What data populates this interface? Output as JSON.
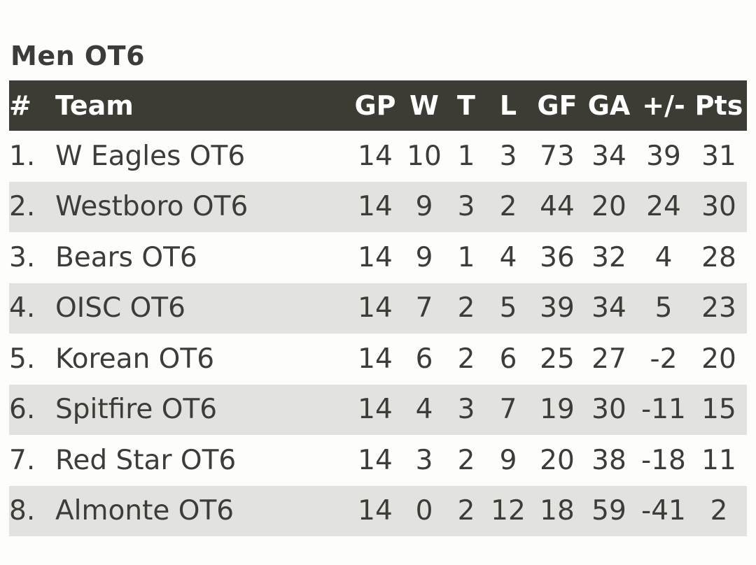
{
  "title": "Men OT6",
  "headers": {
    "rank": "#",
    "team": "Team",
    "gp": "GP",
    "w": "W",
    "t": "T",
    "l": "L",
    "gf": "GF",
    "ga": "GA",
    "pm": "+/-",
    "pts": "Pts"
  },
  "rows": [
    {
      "rank": "1.",
      "team": "W Eagles OT6",
      "gp": "14",
      "w": "10",
      "t": "1",
      "l": "3",
      "gf": "73",
      "ga": "34",
      "pm": "39",
      "pts": "31"
    },
    {
      "rank": "2.",
      "team": "Westboro OT6",
      "gp": "14",
      "w": "9",
      "t": "3",
      "l": "2",
      "gf": "44",
      "ga": "20",
      "pm": "24",
      "pts": "30"
    },
    {
      "rank": "3.",
      "team": "Bears OT6",
      "gp": "14",
      "w": "9",
      "t": "1",
      "l": "4",
      "gf": "36",
      "ga": "32",
      "pm": "4",
      "pts": "28"
    },
    {
      "rank": "4.",
      "team": "OISC OT6",
      "gp": "14",
      "w": "7",
      "t": "2",
      "l": "5",
      "gf": "39",
      "ga": "34",
      "pm": "5",
      "pts": "23"
    },
    {
      "rank": "5.",
      "team": "Korean OT6",
      "gp": "14",
      "w": "6",
      "t": "2",
      "l": "6",
      "gf": "25",
      "ga": "27",
      "pm": "-2",
      "pts": "20"
    },
    {
      "rank": "6.",
      "team": "Spitfire OT6",
      "gp": "14",
      "w": "4",
      "t": "3",
      "l": "7",
      "gf": "19",
      "ga": "30",
      "pm": "-11",
      "pts": "15"
    },
    {
      "rank": "7.",
      "team": "Red Star OT6",
      "gp": "14",
      "w": "3",
      "t": "2",
      "l": "9",
      "gf": "20",
      "ga": "38",
      "pm": "-18",
      "pts": "11"
    },
    {
      "rank": "8.",
      "team": "Almonte OT6",
      "gp": "14",
      "w": "0",
      "t": "2",
      "l": "12",
      "gf": "18",
      "ga": "59",
      "pm": "-41",
      "pts": "2"
    }
  ],
  "colors": {
    "header_bg": "#3c3c35",
    "row_alt_bg": "#e2e3de",
    "text": "#3c3c38"
  }
}
